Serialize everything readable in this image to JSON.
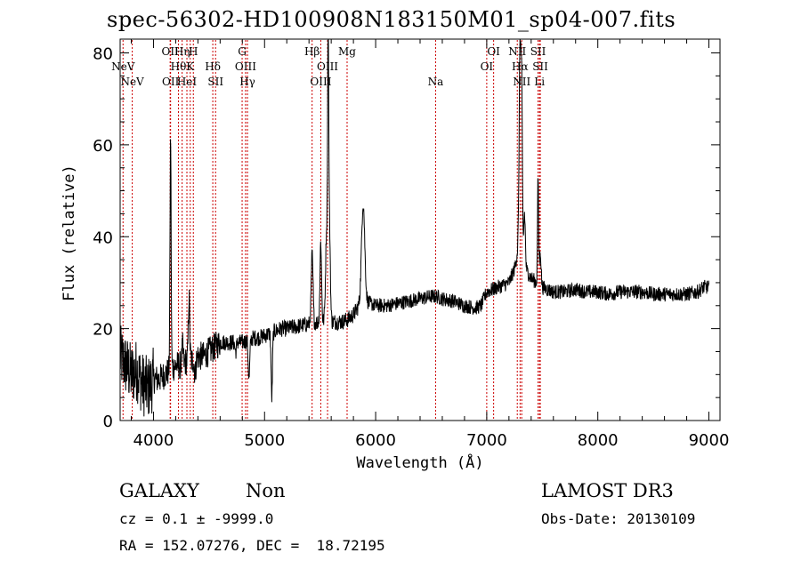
{
  "title": "spec-56302-HD100908N183150M01_sp04-007.fits",
  "footer": {
    "class": "GALAXY",
    "subclass": "Non",
    "survey": "LAMOST DR3",
    "cz": "cz = 0.1 ± -9999.0",
    "obs_date": "Obs-Date: 20130109",
    "radec": "RA = 152.07276, DEC =  18.72195"
  },
  "chart_data": {
    "type": "line",
    "title": "spec-56302-HD100908N183150M01_sp04-007.fits",
    "xlabel": "Wavelength (Å)",
    "ylabel": "Flux (relative)",
    "xlim": [
      3700,
      9100
    ],
    "ylim": [
      0,
      83
    ],
    "xticks": [
      4000,
      5000,
      6000,
      7000,
      8000,
      9000
    ],
    "yticks": [
      0,
      20,
      40,
      60,
      80
    ],
    "grid": false,
    "line_color": "#000000",
    "marker_color": "#cc0000",
    "spectrum_anchors": [
      [
        3700,
        14
      ],
      [
        3750,
        12
      ],
      [
        3800,
        10
      ],
      [
        3850,
        11
      ],
      [
        3900,
        8
      ],
      [
        3950,
        7
      ],
      [
        4000,
        9
      ],
      [
        4050,
        9
      ],
      [
        4100,
        10
      ],
      [
        4150,
        11
      ],
      [
        4200,
        12
      ],
      [
        4250,
        12
      ],
      [
        4300,
        13
      ],
      [
        4350,
        13
      ],
      [
        4400,
        14
      ],
      [
        4450,
        14
      ],
      [
        4500,
        15
      ],
      [
        4550,
        16
      ],
      [
        4600,
        17
      ],
      [
        4650,
        17
      ],
      [
        4700,
        17
      ],
      [
        4750,
        17
      ],
      [
        4800,
        17
      ],
      [
        4850,
        17.5
      ],
      [
        4900,
        18
      ],
      [
        4950,
        18
      ],
      [
        5000,
        18.5
      ],
      [
        5050,
        19
      ],
      [
        5100,
        19.5
      ],
      [
        5150,
        20
      ],
      [
        5200,
        20
      ],
      [
        5300,
        20.5
      ],
      [
        5400,
        21
      ],
      [
        5500,
        21.5
      ],
      [
        5600,
        21.5
      ],
      [
        5700,
        21.5
      ],
      [
        5750,
        22
      ],
      [
        5800,
        23
      ],
      [
        5850,
        25
      ],
      [
        5900,
        26
      ],
      [
        5950,
        25.5
      ],
      [
        6000,
        25
      ],
      [
        6100,
        25
      ],
      [
        6200,
        25.5
      ],
      [
        6300,
        26
      ],
      [
        6400,
        26.5
      ],
      [
        6500,
        27
      ],
      [
        6550,
        27
      ],
      [
        6600,
        26.5
      ],
      [
        6700,
        26
      ],
      [
        6800,
        25
      ],
      [
        6900,
        24.5
      ],
      [
        6950,
        25
      ],
      [
        7000,
        28
      ],
      [
        7050,
        28.5
      ],
      [
        7100,
        29
      ],
      [
        7150,
        29.5
      ],
      [
        7200,
        30
      ],
      [
        7250,
        33
      ],
      [
        7280,
        37
      ],
      [
        7300,
        38
      ],
      [
        7350,
        33
      ],
      [
        7400,
        31
      ],
      [
        7450,
        30
      ],
      [
        7500,
        29
      ],
      [
        7600,
        28
      ],
      [
        7700,
        28
      ],
      [
        7800,
        28.5
      ],
      [
        7900,
        28
      ],
      [
        8000,
        28
      ],
      [
        8100,
        27.5
      ],
      [
        8200,
        28
      ],
      [
        8300,
        28
      ],
      [
        8400,
        28
      ],
      [
        8500,
        27.5
      ],
      [
        8600,
        27.5
      ],
      [
        8700,
        27.5
      ],
      [
        8800,
        27.5
      ],
      [
        8900,
        28
      ],
      [
        8950,
        29
      ],
      [
        9000,
        29
      ]
    ],
    "spectrum_features": [
      [
        4154,
        62,
        5
      ],
      [
        4262,
        16,
        6
      ],
      [
        4320,
        27,
        6
      ],
      [
        4375,
        10,
        6
      ],
      [
        4740,
        15,
        7
      ],
      [
        4860,
        9,
        7
      ],
      [
        5065,
        5,
        6
      ],
      [
        5428,
        36,
        8
      ],
      [
        5506,
        39,
        7
      ],
      [
        5560,
        42,
        10
      ],
      [
        5573,
        76,
        5
      ],
      [
        5586,
        40,
        7
      ],
      [
        5887,
        47,
        14
      ],
      [
        5904,
        27,
        10
      ],
      [
        7300,
        82,
        8
      ],
      [
        7315,
        69,
        6
      ],
      [
        7340,
        45,
        7
      ],
      [
        7462,
        53,
        5
      ],
      [
        7482,
        37,
        7
      ]
    ],
    "lines": [
      {
        "name": "NeV",
        "x": 3726,
        "row": 1
      },
      {
        "name": "NeV",
        "x": 3809,
        "row": 2
      },
      {
        "name": "OII",
        "x": 4150,
        "row": 0
      },
      {
        "name": "Hθ",
        "x": 4225,
        "row": 1
      },
      {
        "name": "OII",
        "x": 4154,
        "row": 2
      },
      {
        "name": "Hη",
        "x": 4258,
        "row": 0
      },
      {
        "name": "HeI",
        "x": 4301,
        "row": 2
      },
      {
        "name": "H",
        "x": 4359,
        "row": 0
      },
      {
        "name": "K",
        "x": 4331,
        "row": 1
      },
      {
        "name": "Hδ",
        "x": 4534,
        "row": 1
      },
      {
        "name": "SII",
        "x": 4559,
        "row": 2
      },
      {
        "name": "G",
        "x": 4798,
        "row": 0
      },
      {
        "name": "OIII",
        "x": 4829,
        "row": 1
      },
      {
        "name": "Hγ",
        "x": 4846,
        "row": 2
      },
      {
        "name": "Hβ",
        "x": 5428,
        "row": 0
      },
      {
        "name": "OIII",
        "x": 5567,
        "row": 1
      },
      {
        "name": "OIII",
        "x": 5506,
        "row": 2
      },
      {
        "name": "Mg",
        "x": 5743,
        "row": 0
      },
      {
        "name": "Na",
        "x": 6540,
        "row": 2
      },
      {
        "name": "OI",
        "x": 7062,
        "row": 0
      },
      {
        "name": "OI",
        "x": 7000,
        "row": 1
      },
      {
        "name": "NII",
        "x": 7275,
        "row": 0
      },
      {
        "name": "Hα",
        "x": 7300,
        "row": 1
      },
      {
        "name": "NII",
        "x": 7315,
        "row": 2
      },
      {
        "name": "SII",
        "x": 7462,
        "row": 0
      },
      {
        "name": "SII",
        "x": 7482,
        "row": 1
      },
      {
        "name": "Li",
        "x": 7475,
        "row": 2
      }
    ]
  }
}
